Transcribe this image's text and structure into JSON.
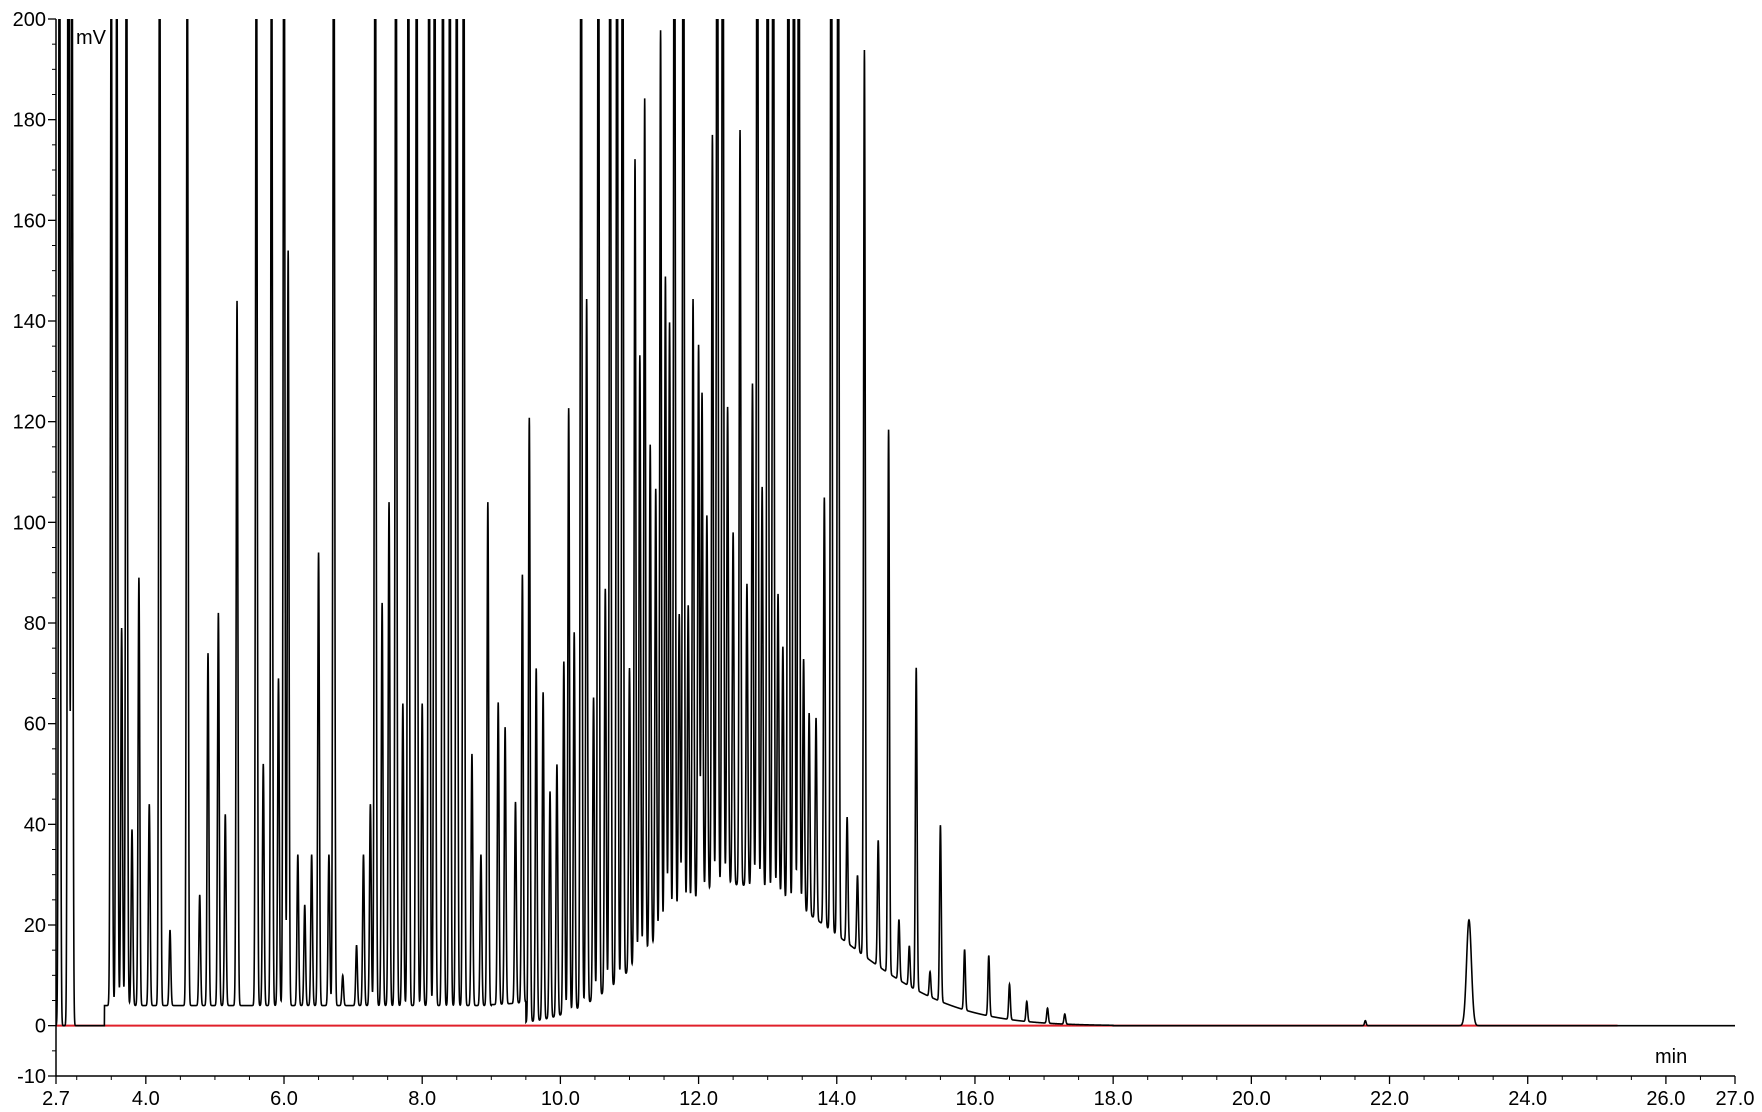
{
  "chart_data": {
    "type": "line",
    "title": "",
    "xlabel": "min",
    "ylabel": "mV",
    "xlim": [
      2.7,
      27.0
    ],
    "ylim": [
      -10,
      200
    ],
    "x_ticks": [
      2.7,
      4.0,
      6.0,
      8.0,
      10.0,
      12.0,
      14.0,
      16.0,
      18.0,
      20.0,
      22.0,
      24.0,
      26.0,
      27.0
    ],
    "x_tick_labels": [
      "2.7",
      "4.0",
      "6.0",
      "8.0",
      "10.0",
      "12.0",
      "14.0",
      "16.0",
      "18.0",
      "20.0",
      "22.0",
      "24.0",
      "26.0",
      "27.0"
    ],
    "y_ticks": [
      -10,
      0,
      20,
      40,
      60,
      80,
      100,
      120,
      140,
      160,
      180,
      200
    ],
    "y_tick_labels": [
      "-10",
      "0",
      "20",
      "40",
      "60",
      "80",
      "100",
      "120",
      "140",
      "160",
      "180",
      "200"
    ],
    "grid": false,
    "legend": "none",
    "colors": {
      "signal": "#000000",
      "baseline": "#e0202a",
      "integration": "#d020d0"
    },
    "peaks": [
      {
        "t": 2.75,
        "h": 250
      },
      {
        "t": 2.88,
        "h": 300
      },
      {
        "t": 2.93,
        "h": 250
      },
      {
        "t": 3.5,
        "h": 220
      },
      {
        "t": 3.58,
        "h": 220
      },
      {
        "t": 3.65,
        "h": 75
      },
      {
        "t": 3.72,
        "h": 240
      },
      {
        "t": 3.8,
        "h": 35
      },
      {
        "t": 3.9,
        "h": 85
      },
      {
        "t": 4.05,
        "h": 40
      },
      {
        "t": 4.2,
        "h": 230
      },
      {
        "t": 4.35,
        "h": 15
      },
      {
        "t": 4.6,
        "h": 220
      },
      {
        "t": 4.78,
        "h": 22
      },
      {
        "t": 4.9,
        "h": 70
      },
      {
        "t": 5.05,
        "h": 78
      },
      {
        "t": 5.15,
        "h": 38
      },
      {
        "t": 5.32,
        "h": 140
      },
      {
        "t": 5.6,
        "h": 230
      },
      {
        "t": 5.7,
        "h": 48
      },
      {
        "t": 5.82,
        "h": 230
      },
      {
        "t": 5.92,
        "h": 65
      },
      {
        "t": 6.0,
        "h": 250
      },
      {
        "t": 6.06,
        "h": 150
      },
      {
        "t": 6.2,
        "h": 30
      },
      {
        "t": 6.3,
        "h": 20
      },
      {
        "t": 6.4,
        "h": 30
      },
      {
        "t": 6.5,
        "h": 90
      },
      {
        "t": 6.65,
        "h": 30
      },
      {
        "t": 6.72,
        "h": 250
      },
      {
        "t": 6.85,
        "h": 6
      },
      {
        "t": 7.05,
        "h": 12
      },
      {
        "t": 7.15,
        "h": 30
      },
      {
        "t": 7.25,
        "h": 40
      },
      {
        "t": 7.32,
        "h": 250
      },
      {
        "t": 7.42,
        "h": 80
      },
      {
        "t": 7.52,
        "h": 100
      },
      {
        "t": 7.62,
        "h": 250
      },
      {
        "t": 7.72,
        "h": 60
      },
      {
        "t": 7.8,
        "h": 250
      },
      {
        "t": 7.92,
        "h": 250
      },
      {
        "t": 8.0,
        "h": 60
      },
      {
        "t": 8.1,
        "h": 250
      },
      {
        "t": 8.18,
        "h": 250
      },
      {
        "t": 8.3,
        "h": 250
      },
      {
        "t": 8.4,
        "h": 250
      },
      {
        "t": 8.5,
        "h": 250
      },
      {
        "t": 8.6,
        "h": 250
      },
      {
        "t": 8.72,
        "h": 50
      },
      {
        "t": 8.85,
        "h": 30
      },
      {
        "t": 8.95,
        "h": 100
      },
      {
        "t": 9.1,
        "h": 60
      },
      {
        "t": 9.2,
        "h": 55
      },
      {
        "t": 9.35,
        "h": 40
      },
      {
        "t": 9.45,
        "h": 85
      },
      {
        "t": 9.55,
        "h": 120
      },
      {
        "t": 9.65,
        "h": 70
      },
      {
        "t": 9.75,
        "h": 65
      },
      {
        "t": 9.85,
        "h": 45
      },
      {
        "t": 9.95,
        "h": 50
      },
      {
        "t": 10.05,
        "h": 70
      },
      {
        "t": 10.12,
        "h": 120
      },
      {
        "t": 10.2,
        "h": 75
      },
      {
        "t": 10.3,
        "h": 250
      },
      {
        "t": 10.38,
        "h": 140
      },
      {
        "t": 10.48,
        "h": 60
      },
      {
        "t": 10.55,
        "h": 250
      },
      {
        "t": 10.65,
        "h": 80
      },
      {
        "t": 10.72,
        "h": 250
      },
      {
        "t": 10.82,
        "h": 250
      },
      {
        "t": 10.9,
        "h": 250
      },
      {
        "t": 11.0,
        "h": 60
      },
      {
        "t": 11.08,
        "h": 160
      },
      {
        "t": 11.15,
        "h": 120
      },
      {
        "t": 11.22,
        "h": 170
      },
      {
        "t": 11.3,
        "h": 100
      },
      {
        "t": 11.38,
        "h": 90
      },
      {
        "t": 11.45,
        "h": 180
      },
      {
        "t": 11.52,
        "h": 130
      },
      {
        "t": 11.58,
        "h": 120
      },
      {
        "t": 11.65,
        "h": 250
      },
      {
        "t": 11.72,
        "h": 60
      },
      {
        "t": 11.78,
        "h": 250
      },
      {
        "t": 11.85,
        "h": 60
      },
      {
        "t": 11.92,
        "h": 120
      },
      {
        "t": 12.0,
        "h": 110
      },
      {
        "t": 12.05,
        "h": 100
      },
      {
        "t": 12.12,
        "h": 75
      },
      {
        "t": 12.2,
        "h": 150
      },
      {
        "t": 12.27,
        "h": 250
      },
      {
        "t": 12.35,
        "h": 250
      },
      {
        "t": 12.42,
        "h": 95
      },
      {
        "t": 12.5,
        "h": 70
      },
      {
        "t": 12.6,
        "h": 150
      },
      {
        "t": 12.7,
        "h": 60
      },
      {
        "t": 12.78,
        "h": 100
      },
      {
        "t": 12.85,
        "h": 250
      },
      {
        "t": 12.92,
        "h": 80
      },
      {
        "t": 13.0,
        "h": 250
      },
      {
        "t": 13.08,
        "h": 250
      },
      {
        "t": 13.15,
        "h": 60
      },
      {
        "t": 13.22,
        "h": 50
      },
      {
        "t": 13.3,
        "h": 250
      },
      {
        "t": 13.38,
        "h": 250
      },
      {
        "t": 13.45,
        "h": 250
      },
      {
        "t": 13.52,
        "h": 50
      },
      {
        "t": 13.6,
        "h": 40
      },
      {
        "t": 13.7,
        "h": 40
      },
      {
        "t": 13.82,
        "h": 85
      },
      {
        "t": 13.92,
        "h": 250
      },
      {
        "t": 14.02,
        "h": 250
      },
      {
        "t": 14.15,
        "h": 25
      },
      {
        "t": 14.3,
        "h": 15
      },
      {
        "t": 14.4,
        "h": 180
      },
      {
        "t": 14.6,
        "h": 25
      },
      {
        "t": 14.75,
        "h": 108
      },
      {
        "t": 14.9,
        "h": 12
      },
      {
        "t": 15.05,
        "h": 8
      },
      {
        "t": 15.15,
        "h": 64
      },
      {
        "t": 15.35,
        "h": 5
      },
      {
        "t": 15.5,
        "h": 35
      },
      {
        "t": 15.85,
        "h": 12
      },
      {
        "t": 16.2,
        "h": 12
      },
      {
        "t": 16.5,
        "h": 7
      },
      {
        "t": 16.75,
        "h": 4
      },
      {
        "t": 17.05,
        "h": 3
      },
      {
        "t": 17.3,
        "h": 2
      },
      {
        "t": 21.65,
        "h": 1
      },
      {
        "t": 23.15,
        "h": 21
      }
    ]
  }
}
